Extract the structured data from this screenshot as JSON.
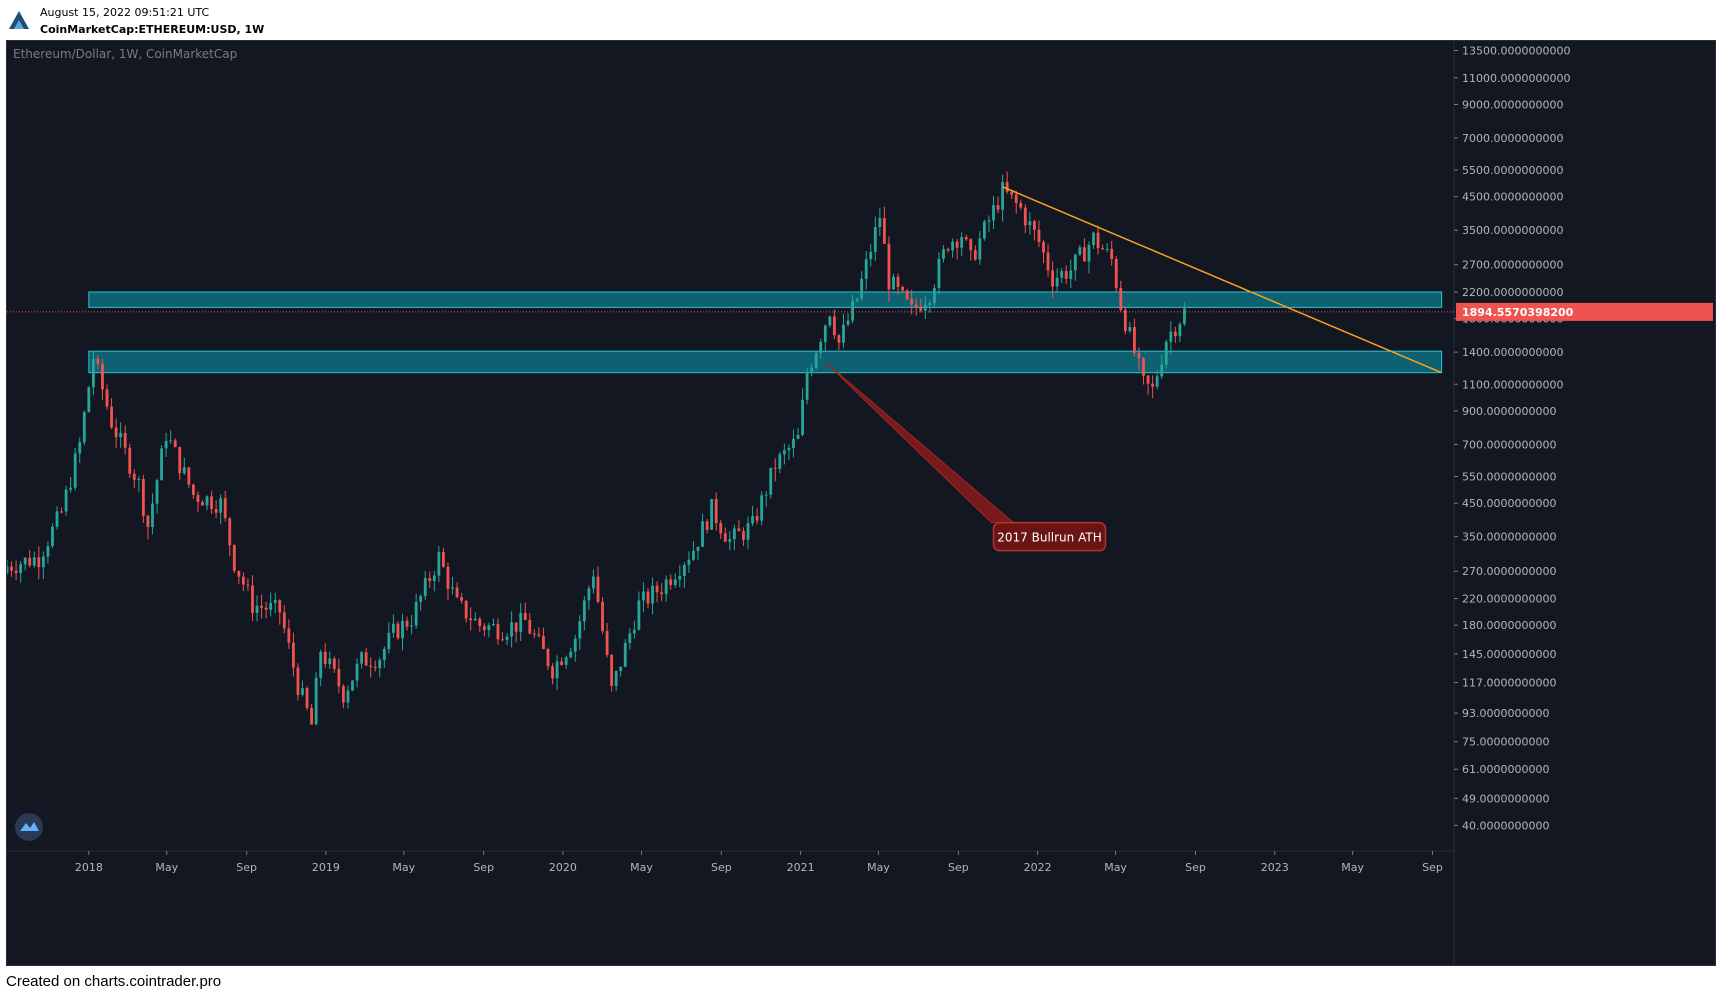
{
  "header": {
    "timestamp": "August 15, 2022 09:51:21 UTC",
    "symbol_line": "CoinMarketCap:ETHEREUM:USD, 1W",
    "logo_icon": "cointrader-logo-icon"
  },
  "footer": {
    "credit": "Created on charts.cointrader.pro"
  },
  "colors": {
    "background": "#131722",
    "bull": "#26a69a",
    "bear": "#ef5350",
    "zone_fill": "#0e6f7f",
    "zone_border": "#23c6d8",
    "trendline": "#f7a21b",
    "ath_line": "#8b1a1a",
    "ath_label_bg": "#6b1414",
    "price_label_bg": "#ef5350",
    "axis_text": "#b2b5be"
  },
  "chart_data": {
    "type": "candlestick",
    "title": "Ethereum/Dollar, 1W, CoinMarketCap",
    "y_scale": "log",
    "current_price": 1894.55703982,
    "current_price_label": "1894.5570398200",
    "y_tick_labels": [
      "13500.0000000000",
      "11000.0000000000",
      "9000.0000000000",
      "7000.0000000000",
      "5500.0000000000",
      "4500.0000000000",
      "3500.0000000000",
      "2700.0000000000",
      "2200.0000000000",
      "1800.0000000000",
      "1400.0000000000",
      "1100.0000000000",
      "900.0000000000",
      "700.0000000000",
      "550.0000000000",
      "450.0000000000",
      "350.0000000000",
      "270.0000000000",
      "220.0000000000",
      "180.0000000000",
      "145.0000000000",
      "117.0000000000",
      "93.0000000000",
      "75.0000000000",
      "61.0000000000",
      "49.0000000000",
      "40.0000000000"
    ],
    "x_tick_labels": [
      {
        "label": "2018",
        "date": "2018-01-01"
      },
      {
        "label": "May",
        "date": "2018-05-01"
      },
      {
        "label": "Sep",
        "date": "2018-09-01"
      },
      {
        "label": "2019",
        "date": "2019-01-01"
      },
      {
        "label": "May",
        "date": "2019-05-01"
      },
      {
        "label": "Sep",
        "date": "2019-09-01"
      },
      {
        "label": "2020",
        "date": "2020-01-01"
      },
      {
        "label": "May",
        "date": "2020-05-01"
      },
      {
        "label": "Sep",
        "date": "2020-09-01"
      },
      {
        "label": "2021",
        "date": "2021-01-01"
      },
      {
        "label": "May",
        "date": "2021-05-01"
      },
      {
        "label": "Sep",
        "date": "2021-09-01"
      },
      {
        "label": "2022",
        "date": "2022-01-01"
      },
      {
        "label": "May",
        "date": "2022-05-01"
      },
      {
        "label": "Sep",
        "date": "2022-09-01"
      },
      {
        "label": "2023",
        "date": "2023-01-01"
      },
      {
        "label": "May",
        "date": "2023-05-01"
      },
      {
        "label": "Sep",
        "date": "2023-09-01"
      }
    ],
    "x_range": [
      "2017-08-28",
      "2023-10-01"
    ],
    "y_range": [
      33,
      14500
    ],
    "close_path": [
      {
        "date": "2017-08-28",
        "close": 280
      },
      {
        "date": "2017-10-16",
        "close": 300
      },
      {
        "date": "2017-11-20",
        "close": 420
      },
      {
        "date": "2017-12-18",
        "close": 700
      },
      {
        "date": "2018-01-08",
        "close": 1350
      },
      {
        "date": "2018-02-05",
        "close": 830
      },
      {
        "date": "2018-03-19",
        "close": 520
      },
      {
        "date": "2018-04-02",
        "close": 380
      },
      {
        "date": "2018-04-30",
        "close": 760
      },
      {
        "date": "2018-06-11",
        "close": 480
      },
      {
        "date": "2018-07-23",
        "close": 450
      },
      {
        "date": "2018-08-13",
        "close": 290
      },
      {
        "date": "2018-09-10",
        "close": 210
      },
      {
        "date": "2018-10-22",
        "close": 200
      },
      {
        "date": "2018-11-19",
        "close": 115
      },
      {
        "date": "2018-12-10",
        "close": 85
      },
      {
        "date": "2018-12-24",
        "close": 150
      },
      {
        "date": "2019-01-28",
        "close": 108
      },
      {
        "date": "2019-02-25",
        "close": 138
      },
      {
        "date": "2019-03-25",
        "close": 142
      },
      {
        "date": "2019-04-15",
        "close": 170
      },
      {
        "date": "2019-05-13",
        "close": 190
      },
      {
        "date": "2019-06-24",
        "close": 300
      },
      {
        "date": "2019-07-22",
        "close": 210
      },
      {
        "date": "2019-08-26",
        "close": 180
      },
      {
        "date": "2019-09-30",
        "close": 175
      },
      {
        "date": "2019-11-04",
        "close": 185
      },
      {
        "date": "2019-12-16",
        "close": 130
      },
      {
        "date": "2020-01-20",
        "close": 165
      },
      {
        "date": "2020-02-17",
        "close": 270
      },
      {
        "date": "2020-03-16",
        "close": 110
      },
      {
        "date": "2020-04-27",
        "close": 210
      },
      {
        "date": "2020-06-01",
        "close": 240
      },
      {
        "date": "2020-07-20",
        "close": 320
      },
      {
        "date": "2020-08-17",
        "close": 430
      },
      {
        "date": "2020-09-14",
        "close": 340
      },
      {
        "date": "2020-10-19",
        "close": 380
      },
      {
        "date": "2020-11-23",
        "close": 600
      },
      {
        "date": "2020-12-28",
        "close": 730
      },
      {
        "date": "2021-01-11",
        "close": 1200
      },
      {
        "date": "2021-02-15",
        "close": 1930
      },
      {
        "date": "2021-03-01",
        "close": 1500
      },
      {
        "date": "2021-03-29",
        "close": 2100
      },
      {
        "date": "2021-05-03",
        "close": 3900
      },
      {
        "date": "2021-05-17",
        "close": 2400
      },
      {
        "date": "2021-06-21",
        "close": 1900
      },
      {
        "date": "2021-07-19",
        "close": 2200
      },
      {
        "date": "2021-08-16",
        "close": 3200
      },
      {
        "date": "2021-09-06",
        "close": 3400
      },
      {
        "date": "2021-09-20",
        "close": 2800
      },
      {
        "date": "2021-11-08",
        "close": 4700
      },
      {
        "date": "2021-12-06",
        "close": 4100
      },
      {
        "date": "2022-01-03",
        "close": 3200
      },
      {
        "date": "2022-01-24",
        "close": 2450
      },
      {
        "date": "2022-02-21",
        "close": 2600
      },
      {
        "date": "2022-03-28",
        "close": 3300
      },
      {
        "date": "2022-04-25",
        "close": 2800
      },
      {
        "date": "2022-05-09",
        "close": 2000
      },
      {
        "date": "2022-06-13",
        "close": 1100
      },
      {
        "date": "2022-06-27",
        "close": 1050
      },
      {
        "date": "2022-07-18",
        "close": 1550
      },
      {
        "date": "2022-08-15",
        "close": 1895
      }
    ],
    "support_zones": [
      {
        "name": "upper-zone",
        "low": 1960,
        "high": 2200,
        "from": "2018-01-01",
        "to": "2023-09-15"
      },
      {
        "name": "lower-zone",
        "low": 1200,
        "high": 1410,
        "from": "2018-01-01",
        "to": "2023-09-15"
      }
    ],
    "trendline": {
      "from": {
        "date": "2021-11-08",
        "price": 4850
      },
      "to": {
        "date": "2023-09-15",
        "price": 1200
      }
    },
    "annotations": [
      {
        "name": "2017-bullrun-ath",
        "label": "2017 Bullrun ATH",
        "from": {
          "date": "2021-02-08",
          "price": 1300
        },
        "to": {
          "date": "2021-10-25",
          "price": 350
        }
      }
    ]
  }
}
